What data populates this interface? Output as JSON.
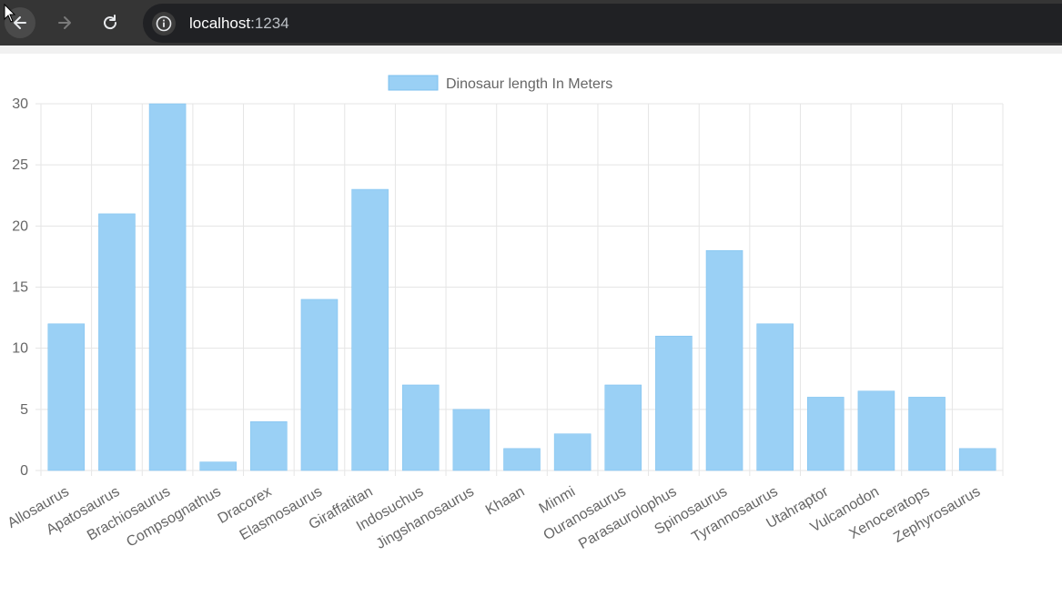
{
  "browser": {
    "url_host": "localhost",
    "url_port": ":1234",
    "icons": [
      "back-arrow-icon",
      "forward-arrow-icon",
      "reload-icon",
      "info-icon"
    ]
  },
  "colors": {
    "bar_fill": "#9ad0f5",
    "bar_stroke": "#7cc0ef",
    "grid": "#e5e5e5",
    "tick_text": "#666666"
  },
  "chart_data": {
    "type": "bar",
    "categories": [
      "Allosaurus",
      "Apatosaurus",
      "Brachiosaurus",
      "Compsognathus",
      "Dracorex",
      "Elasmosaurus",
      "Giraffatitan",
      "Indosuchus",
      "Jingshanosaurus",
      "Khaan",
      "Minmi",
      "Ouranosaurus",
      "Parasaurolophus",
      "Spinosaurus",
      "Tyrannosaurus",
      "Utahraptor",
      "Vulcanodon",
      "Xenoceratops",
      "Zephyrosaurus"
    ],
    "series": [
      {
        "name": "Dinosaur length In Meters",
        "values": [
          12,
          21,
          30,
          0.7,
          4,
          14,
          23,
          7,
          5,
          1.8,
          3,
          7,
          11,
          18,
          12,
          6,
          6.5,
          6,
          1.8
        ]
      }
    ],
    "ylim": [
      0,
      30
    ],
    "yticks": [
      "0",
      "5",
      "10",
      "15",
      "20",
      "25",
      "30"
    ],
    "grid": true,
    "legend": "top-center"
  }
}
